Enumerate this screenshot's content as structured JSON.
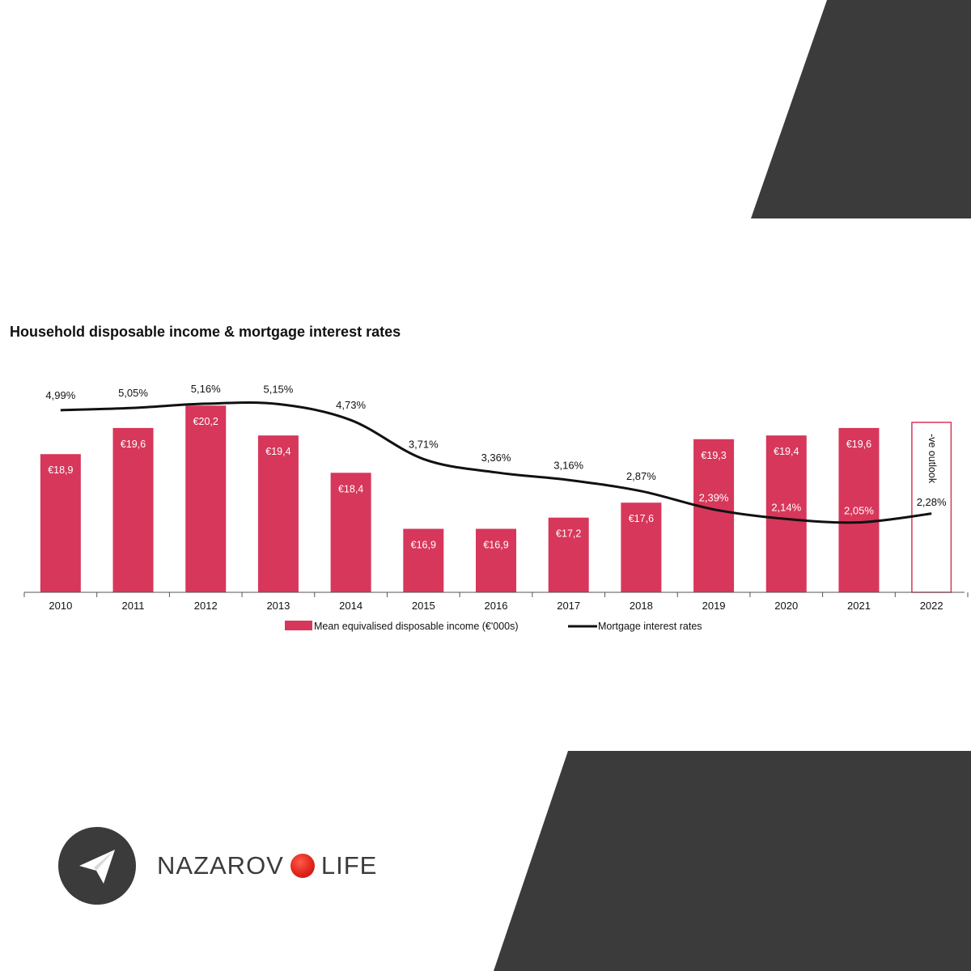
{
  "title": "Household disposable income & mortgage interest rates",
  "chart_data": {
    "type": "bar",
    "categories": [
      "2010",
      "2011",
      "2012",
      "2013",
      "2014",
      "2015",
      "2016",
      "2017",
      "2018",
      "2019",
      "2020",
      "2021",
      "2022"
    ],
    "series": [
      {
        "name": "Mean equivalised disposable income (€'000s)",
        "type": "bar",
        "values": [
          18.9,
          19.6,
          20.2,
          19.4,
          18.4,
          16.9,
          16.9,
          17.2,
          17.6,
          19.3,
          19.4,
          19.6,
          null
        ],
        "labels": [
          "€18,9",
          "€19,6",
          "€20,2",
          "€19,4",
          "€18,4",
          "€16,9",
          "€16,9",
          "€17,2",
          "€17,6",
          "€19,3",
          "€19,4",
          "€19,6",
          ""
        ],
        "color": "#d7375a"
      },
      {
        "name": "Mortgage interest rates",
        "type": "line",
        "values": [
          4.99,
          5.05,
          5.16,
          5.15,
          4.73,
          3.71,
          3.36,
          3.16,
          2.87,
          2.39,
          2.14,
          2.05,
          2.28
        ],
        "labels": [
          "4,99%",
          "5,05%",
          "5,16%",
          "5,15%",
          "4,73%",
          "3,71%",
          "3,36%",
          "3,16%",
          "2,87%",
          "2,39%",
          "2,14%",
          "2,05%",
          "2,28%"
        ],
        "color": "#111111"
      }
    ],
    "annotation": {
      "category": "2022",
      "text": "-ve outlook"
    },
    "bar_scale_hint": [
      15.2,
      20.4
    ],
    "line_scale_hint": [
      0.0,
      5.7
    ],
    "grid": false,
    "legend_position": "bottom"
  },
  "brand": {
    "name_part1": "NAZAROV",
    "name_part2": "LIFE",
    "icon": "paper-plane-icon",
    "accent": "#e0251b",
    "dark": "#3a3b3a"
  }
}
